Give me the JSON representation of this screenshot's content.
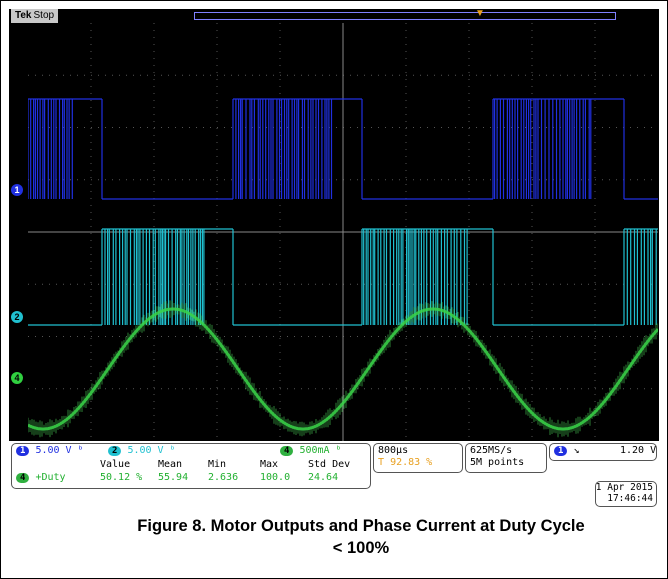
{
  "scope": {
    "brand": "Tek",
    "state": "Stop"
  },
  "channels": {
    "ch1": {
      "label": "1",
      "scale": "5.00 V",
      "color": "#2030e0"
    },
    "ch2": {
      "label": "2",
      "scale": "5.00 V",
      "color": "#20c0d0"
    },
    "ch4": {
      "label": "4",
      "scale": "500mA",
      "color": "#30d040"
    }
  },
  "horizontal": {
    "timebase": "800µs",
    "trigger_pos": "92.83 %"
  },
  "acquisition": {
    "sample_rate": "625MS/s",
    "record_length": "5M points"
  },
  "trigger": {
    "source": "1",
    "slope": "↘",
    "level": "1.20 V"
  },
  "measurement": {
    "headers": [
      "Value",
      "Mean",
      "Min",
      "Max",
      "Std Dev"
    ],
    "channel": "4",
    "name": "+Duty",
    "values": [
      "50.12 %",
      "55.94",
      "2.636",
      "100.0",
      "24.64"
    ]
  },
  "datetime": {
    "date": "1 Apr 2015",
    "time": "17:46:44"
  },
  "caption": {
    "line1": "Figure 8. Motor Outputs and Phase Current at Duty Cycle",
    "line2": "< 100%"
  }
}
